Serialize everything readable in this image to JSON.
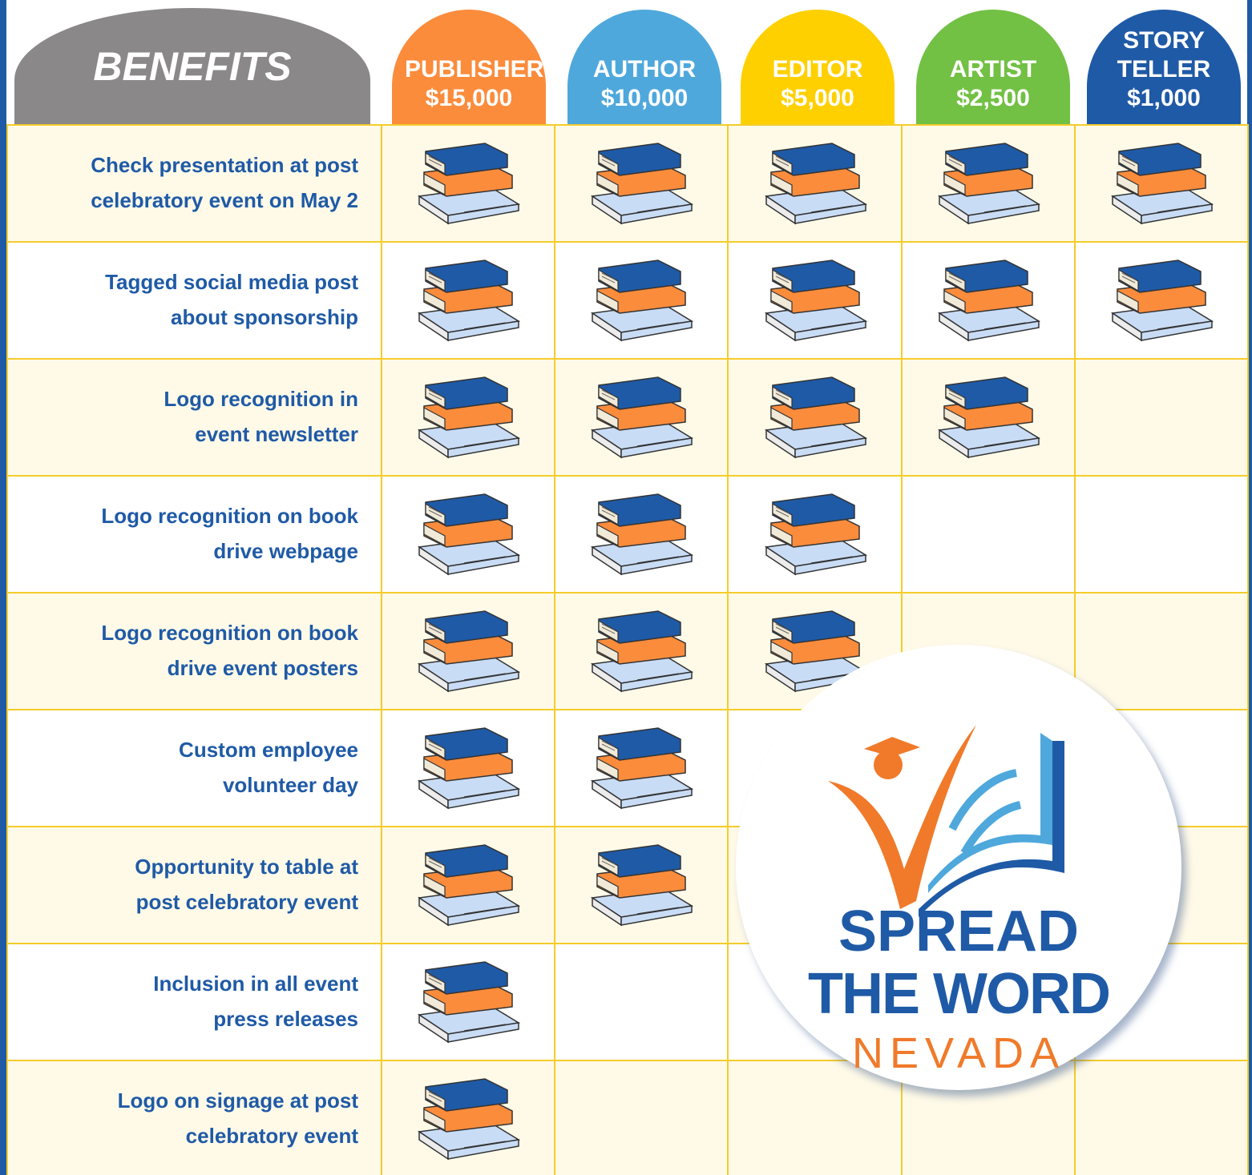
{
  "header": {
    "title": "BENEFITS",
    "tiers": [
      {
        "name": "PUBLISHER",
        "price": "$15,000"
      },
      {
        "name": "AUTHOR",
        "price": "$10,000"
      },
      {
        "name": "EDITOR",
        "price": "$5,000"
      },
      {
        "name": "ARTIST",
        "price": "$2,500"
      },
      {
        "name": "STORY TELLER",
        "price": "$1,000"
      }
    ]
  },
  "rows": [
    {
      "label": [
        "Check presentation at post",
        "celebratory event on May 2"
      ]
    },
    {
      "label": [
        "Tagged social media post",
        "about sponsorship"
      ]
    },
    {
      "label": [
        "Logo recognition in",
        "event newsletter"
      ]
    },
    {
      "label": [
        "Logo recognition on book",
        "drive webpage"
      ]
    },
    {
      "label": [
        "Logo recognition on book",
        "drive event posters"
      ]
    },
    {
      "label": [
        "Custom employee",
        "volunteer day"
      ]
    },
    {
      "label": [
        "Opportunity to table at",
        "post celebratory event"
      ]
    },
    {
      "label": [
        "Inclusion in all event",
        "press releases"
      ]
    },
    {
      "label": [
        "Logo on signage at post",
        "celebratory event"
      ]
    }
  ],
  "logo": {
    "line1": "SPREAD",
    "line2": "THE WORD",
    "line3": "NEVADA"
  }
}
